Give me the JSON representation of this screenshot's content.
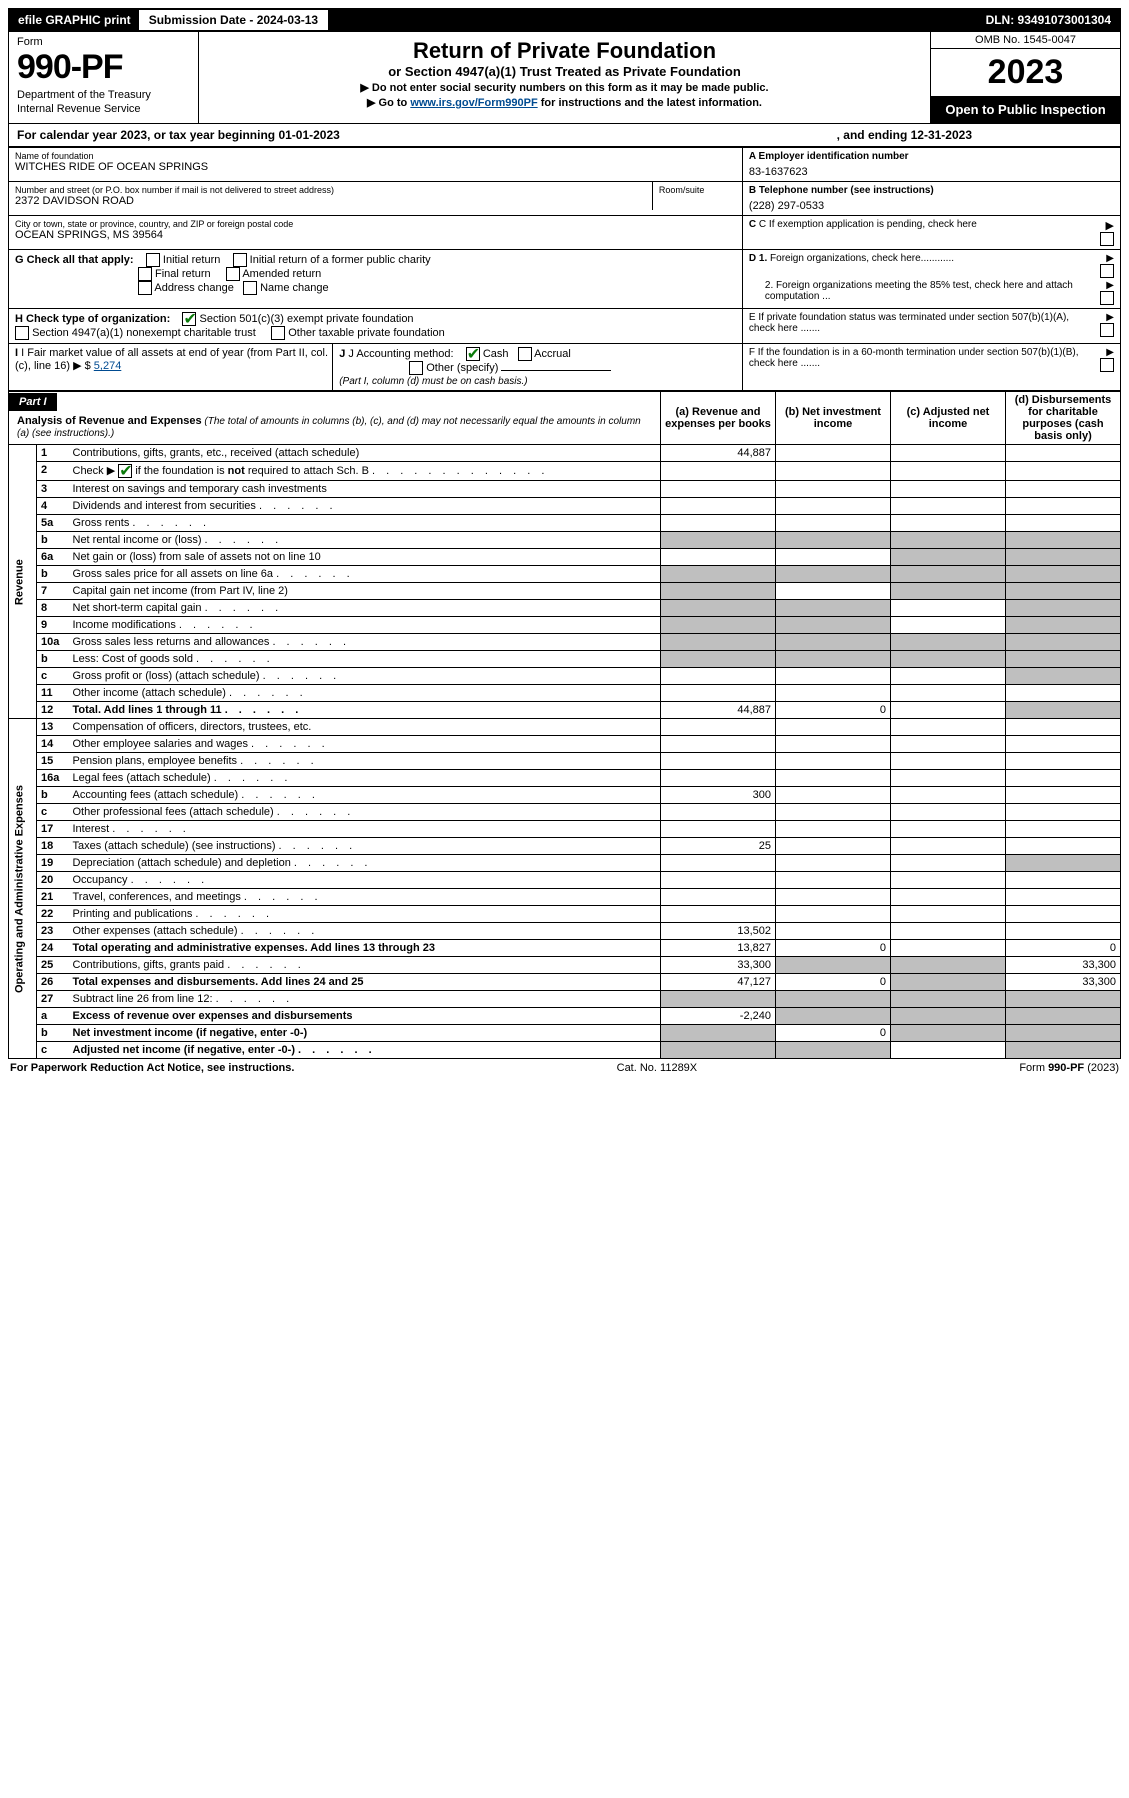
{
  "topbar": {
    "efile": "efile GRAPHIC print",
    "submission": "Submission Date - 2024-03-13",
    "dln": "DLN: 93491073001304"
  },
  "header": {
    "form_label": "Form",
    "form_number": "990-PF",
    "dept1": "Department of the Treasury",
    "dept2": "Internal Revenue Service",
    "title": "Return of Private Foundation",
    "subtitle": "or Section 4947(a)(1) Trust Treated as Private Foundation",
    "instr1": "▶ Do not enter social security numbers on this form as it may be made public.",
    "instr2_pre": "▶ Go to ",
    "instr2_link": "www.irs.gov/Form990PF",
    "instr2_post": " for instructions and the latest information.",
    "omb": "OMB No. 1545-0047",
    "year": "2023",
    "open": "Open to Public Inspection"
  },
  "calyear": {
    "text": "For calendar year 2023, or tax year beginning 01-01-2023",
    "ending": ", and ending 12-31-2023"
  },
  "info": {
    "name_label": "Name of foundation",
    "name": "WITCHES RIDE OF OCEAN SPRINGS",
    "address_label": "Number and street (or P.O. box number if mail is not delivered to street address)",
    "room_label": "Room/suite",
    "address": "2372 DAVIDSON ROAD",
    "city_label": "City or town, state or province, country, and ZIP or foreign postal code",
    "city": "OCEAN SPRINGS, MS  39564",
    "ein_label": "A Employer identification number",
    "ein": "83-1637623",
    "phone_label": "B Telephone number (see instructions)",
    "phone": "(228) 297-0533",
    "c_label": "C If exemption application is pending, check here",
    "g_label": "G Check all that apply:",
    "g_opts": [
      "Initial return",
      "Initial return of a former public charity",
      "Final return",
      "Amended return",
      "Address change",
      "Name change"
    ],
    "d1": "D 1. Foreign organizations, check here............",
    "d2": "2. Foreign organizations meeting the 85% test, check here and attach computation ...",
    "h_label": "H Check type of organization:",
    "h_opt1": "Section 501(c)(3) exempt private foundation",
    "h_opt2": "Section 4947(a)(1) nonexempt charitable trust",
    "h_opt3": "Other taxable private foundation",
    "e_label": "E  If private foundation status was terminated under section 507(b)(1)(A), check here .......",
    "i_label": "I Fair market value of all assets at end of year (from Part II, col. (c), line 16)",
    "i_value": "5,274",
    "j_label": "J Accounting method:",
    "j_cash": "Cash",
    "j_accrual": "Accrual",
    "j_other": "Other (specify)",
    "j_note": "(Part I, column (d) must be on cash basis.)",
    "f_label": "F  If the foundation is in a 60-month termination under section 507(b)(1)(B), check here ......."
  },
  "part1": {
    "label": "Part I",
    "title": "Analysis of Revenue and Expenses",
    "paren": " (The total of amounts in columns (b), (c), and (d) may not necessarily equal the amounts in column (a) (see instructions).)",
    "col_a": "(a)   Revenue and expenses per books",
    "col_b": "(b)   Net investment income",
    "col_c": "(c)   Adjusted net income",
    "col_d": "(d)   Disbursements for charitable purposes (cash basis only)"
  },
  "sections": {
    "revenue": "Revenue",
    "opadmin": "Operating and Administrative Expenses"
  },
  "rows": [
    {
      "n": "1",
      "t": "Contributions, gifts, grants, etc., received (attach schedule)",
      "a": "44,887"
    },
    {
      "n": "2",
      "t_html": "Check ▶ [X] if the foundation is <b>not</b> required to attach Sch. B"
    },
    {
      "n": "3",
      "t": "Interest on savings and temporary cash investments"
    },
    {
      "n": "4",
      "t": "Dividends and interest from securities"
    },
    {
      "n": "5a",
      "t": "Gross rents"
    },
    {
      "n": "b",
      "t": "Net rental income or (loss)",
      "shade_a": true,
      "shade_b": true,
      "shade_c": true,
      "shade_d": true
    },
    {
      "n": "6a",
      "t": "Net gain or (loss) from sale of assets not on line 10",
      "shade_c": true,
      "shade_d": true
    },
    {
      "n": "b",
      "t": "Gross sales price for all assets on line 6a",
      "shade_a": true,
      "shade_b": true,
      "shade_c": true,
      "shade_d": true
    },
    {
      "n": "7",
      "t": "Capital gain net income (from Part IV, line 2)",
      "shade_a": true,
      "shade_c": true,
      "shade_d": true
    },
    {
      "n": "8",
      "t": "Net short-term capital gain",
      "shade_a": true,
      "shade_b": true,
      "shade_d": true
    },
    {
      "n": "9",
      "t": "Income modifications",
      "shade_a": true,
      "shade_b": true,
      "shade_d": true
    },
    {
      "n": "10a",
      "t": "Gross sales less returns and allowances",
      "shade_a": true,
      "shade_b": true,
      "shade_c": true,
      "shade_d": true
    },
    {
      "n": "b",
      "t": "Less: Cost of goods sold",
      "shade_a": true,
      "shade_b": true,
      "shade_c": true,
      "shade_d": true
    },
    {
      "n": "c",
      "t": "Gross profit or (loss) (attach schedule)",
      "shade_d": true
    },
    {
      "n": "11",
      "t": "Other income (attach schedule)"
    },
    {
      "n": "12",
      "t": "Total. Add lines 1 through 11",
      "bold": true,
      "a": "44,887",
      "b": "0",
      "shade_d": true
    }
  ],
  "exp_rows": [
    {
      "n": "13",
      "t": "Compensation of officers, directors, trustees, etc."
    },
    {
      "n": "14",
      "t": "Other employee salaries and wages"
    },
    {
      "n": "15",
      "t": "Pension plans, employee benefits"
    },
    {
      "n": "16a",
      "t": "Legal fees (attach schedule)"
    },
    {
      "n": "b",
      "t": "Accounting fees (attach schedule)",
      "a": "300"
    },
    {
      "n": "c",
      "t": "Other professional fees (attach schedule)"
    },
    {
      "n": "17",
      "t": "Interest"
    },
    {
      "n": "18",
      "t": "Taxes (attach schedule) (see instructions)",
      "a": "25"
    },
    {
      "n": "19",
      "t": "Depreciation (attach schedule) and depletion",
      "shade_d": true
    },
    {
      "n": "20",
      "t": "Occupancy"
    },
    {
      "n": "21",
      "t": "Travel, conferences, and meetings"
    },
    {
      "n": "22",
      "t": "Printing and publications"
    },
    {
      "n": "23",
      "t": "Other expenses (attach schedule)",
      "a": "13,502"
    },
    {
      "n": "24",
      "t": "Total operating and administrative expenses. Add lines 13 through 23",
      "bold": true,
      "a": "13,827",
      "b": "0",
      "d": "0"
    },
    {
      "n": "25",
      "t": "Contributions, gifts, grants paid",
      "a": "33,300",
      "shade_b": true,
      "shade_c": true,
      "d": "33,300"
    },
    {
      "n": "26",
      "t": "Total expenses and disbursements. Add lines 24 and 25",
      "bold": true,
      "a": "47,127",
      "b": "0",
      "shade_c": true,
      "d": "33,300"
    },
    {
      "n": "27",
      "t": "Subtract line 26 from line 12:",
      "shade_a": true,
      "shade_b": true,
      "shade_c": true,
      "shade_d": true
    },
    {
      "n": "a",
      "t": "Excess of revenue over expenses and disbursements",
      "bold": true,
      "a": "-2,240",
      "shade_b": true,
      "shade_c": true,
      "shade_d": true
    },
    {
      "n": "b",
      "t": "Net investment income (if negative, enter -0-)",
      "bold": true,
      "shade_a": true,
      "b": "0",
      "shade_c": true,
      "shade_d": true
    },
    {
      "n": "c",
      "t": "Adjusted net income (if negative, enter -0-)",
      "bold": true,
      "shade_a": true,
      "shade_b": true,
      "shade_d": true
    }
  ],
  "footer": {
    "left": "For Paperwork Reduction Act Notice, see instructions.",
    "mid": "Cat. No. 11289X",
    "right": "Form 990-PF (2023)"
  }
}
